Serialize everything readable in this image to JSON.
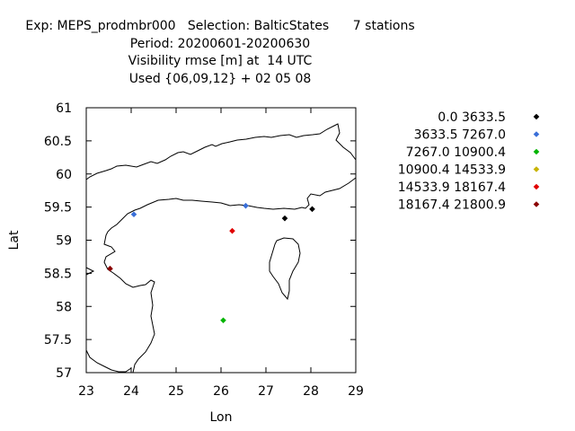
{
  "title_lines": [
    "Exp: MEPS_prodmbr000   Selection: BalticStates      7 stations",
    "Period: 20200601-20200630",
    "Visibility rmse [m] at  14 UTC",
    "Used {06,09,12} + 02 05 08"
  ],
  "chart_data": {
    "type": "scatter",
    "xlabel": "Lon",
    "ylabel": "Lat",
    "xlim": [
      23,
      29
    ],
    "ylim": [
      57,
      61
    ],
    "x_ticks": [
      "23",
      "24",
      "25",
      "26",
      "27",
      "28",
      "29"
    ],
    "y_ticks": [
      "57",
      "57.5",
      "58",
      "58.5",
      "59",
      "59.5",
      "60",
      "60.5",
      "61"
    ],
    "legend_position": "right",
    "series": [
      {
        "name": "0.0 3633.5",
        "color": "#000000",
        "points": [
          [
            27.42,
            59.33
          ],
          [
            28.03,
            59.47
          ]
        ]
      },
      {
        "name": "3633.5 7267.0",
        "color": "#3a6fd8",
        "points": [
          [
            24.06,
            59.39
          ],
          [
            26.55,
            59.52
          ]
        ]
      },
      {
        "name": "7267.0 10900.4",
        "color": "#00b400",
        "points": [
          [
            26.05,
            57.79
          ]
        ]
      },
      {
        "name": "10900.4 14533.9",
        "color": "#c8b400",
        "points": []
      },
      {
        "name": "14533.9 18167.4",
        "color": "#e00000",
        "points": [
          [
            26.25,
            59.14
          ]
        ]
      },
      {
        "name": "18167.4 21800.9",
        "color": "#8b0000",
        "points": [
          [
            23.53,
            58.57
          ]
        ]
      }
    ]
  }
}
